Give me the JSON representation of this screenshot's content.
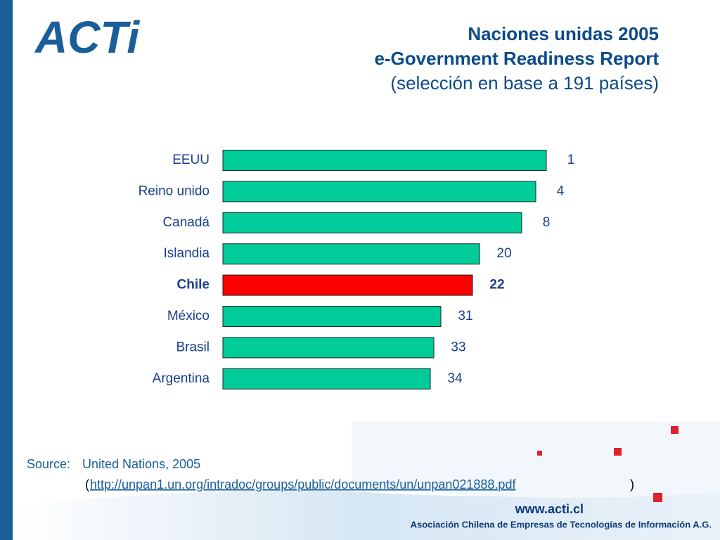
{
  "logo": "ACTi",
  "chart_data": {
    "type": "bar",
    "orientation": "horizontal",
    "title": [
      "Naciones unidas 2005",
      "e-Government Readiness Report",
      "(selección en base a 191 países)"
    ],
    "categories": [
      "EEUU",
      "Reino unido",
      "Canadá",
      "Islandia",
      "Chile",
      "México",
      "Brasil",
      "Argentina"
    ],
    "values": [
      1,
      4,
      8,
      20,
      22,
      31,
      33,
      34
    ],
    "colors": [
      "#00cc99",
      "#00cc99",
      "#00cc99",
      "#00cc99",
      "#ff0000",
      "#00cc99",
      "#00cc99",
      "#00cc99"
    ],
    "emphasis": [
      false,
      false,
      false,
      false,
      true,
      false,
      false,
      false
    ]
  },
  "source": {
    "label": "Source:",
    "text": "United Nations, 2005",
    "open": "(",
    "url": "http://unpan1.un.org/intradoc/groups/public/documents/un/unpan021888.pdf",
    "close": ")"
  },
  "footer": {
    "site": "www.acti.cl",
    "org": "Asociación Chilena de Empresas de Tecnologías de Información A.G."
  }
}
